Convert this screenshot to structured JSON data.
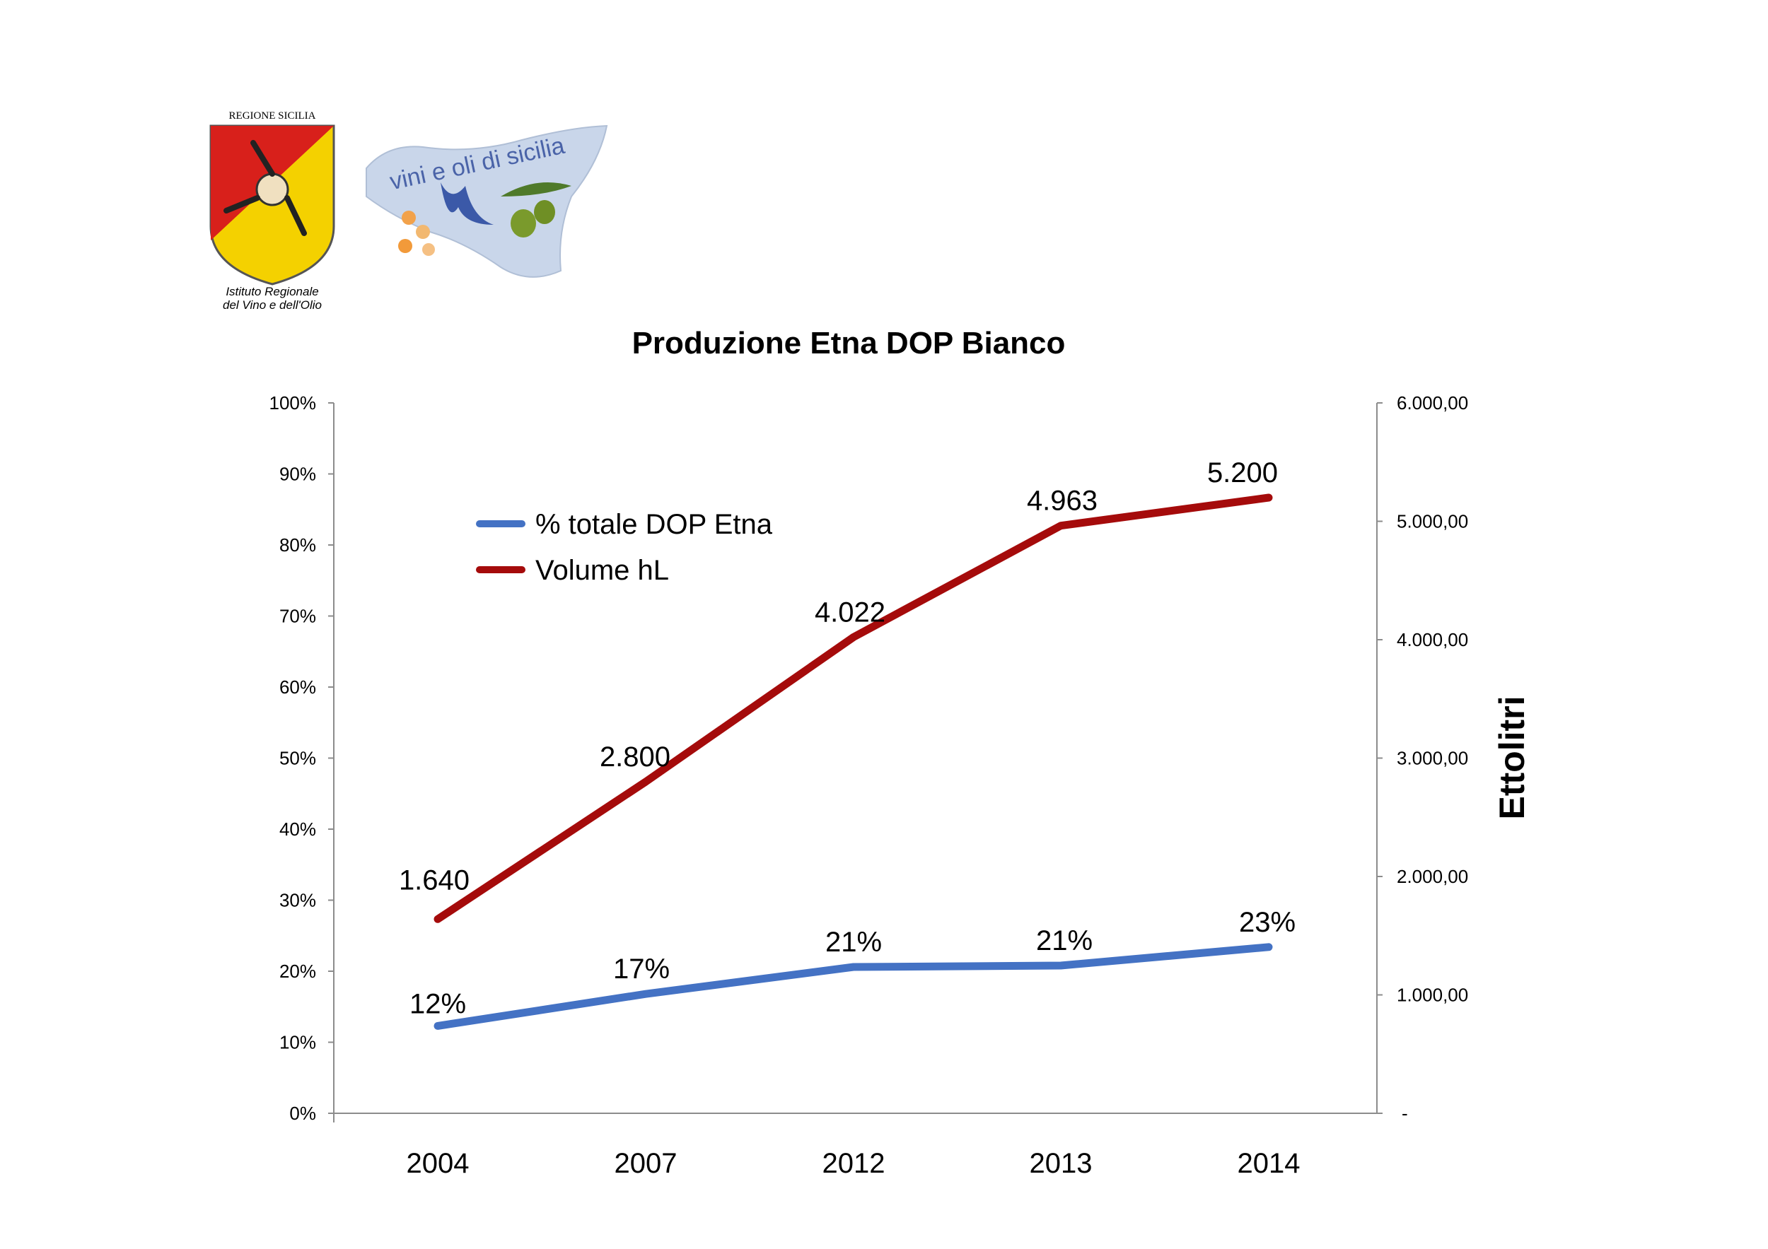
{
  "logos": {
    "regione": {
      "top_text": "REGIONE SICILIA",
      "bottom_line1": "Istituto  Regionale",
      "bottom_line2": "del Vino e dell'Olio"
    },
    "vini": {
      "text": "vini e oli di sicilia"
    }
  },
  "chart_data": {
    "type": "line",
    "title": "Produzione Etna DOP Bianco",
    "categories": [
      "2004",
      "2007",
      "2012",
      "2013",
      "2014"
    ],
    "y_left": {
      "range": [
        0,
        100
      ],
      "ticks": [
        "0%",
        "10%",
        "20%",
        "30%",
        "40%",
        "50%",
        "60%",
        "70%",
        "80%",
        "90%",
        "100%"
      ]
    },
    "y_right": {
      "range": [
        0,
        6000
      ],
      "ticks": [
        "-",
        "1.000,00",
        "2.000,00",
        "3.000,00",
        "4.000,00",
        "5.000,00",
        "6.000,00"
      ],
      "label": "Ettolitri"
    },
    "series": [
      {
        "name": "% totale DOP Etna",
        "axis": "left",
        "color": "#4472c4",
        "values": [
          12.3,
          16.8,
          20.6,
          20.8,
          23.4
        ],
        "labels": [
          "12%",
          "17%",
          "21%",
          "21%",
          "23%"
        ]
      },
      {
        "name": "Volume hL",
        "axis": "right",
        "color": "#a50b0b",
        "values": [
          1640,
          2800,
          4022,
          4963,
          5200
        ],
        "labels": [
          "1.640",
          "2.800",
          "4.022",
          "4.963",
          "5.200"
        ]
      }
    ],
    "legend": "upper-left inside plot",
    "grid": false
  }
}
